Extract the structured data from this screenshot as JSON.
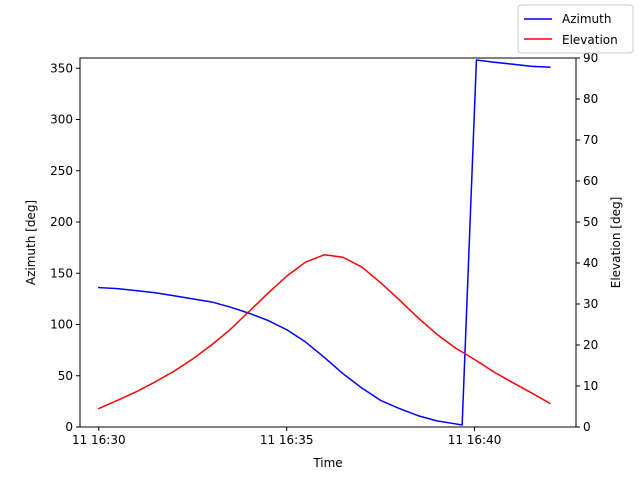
{
  "chart_data": {
    "type": "line",
    "xlabel": "Time",
    "ylabel_left": "Azimuth [deg]",
    "ylabel_right": "Elevation [deg]",
    "x_ticks": [
      "11 16:30",
      "11 16:35",
      "11 16:40"
    ],
    "xlim": [
      "16:29.5",
      "16:42.7"
    ],
    "ylim_left": [
      0,
      360
    ],
    "ylim_right": [
      0,
      90
    ],
    "y_ticks_left": [
      0,
      50,
      100,
      150,
      200,
      250,
      300,
      350
    ],
    "y_ticks_right": [
      0,
      10,
      20,
      30,
      40,
      50,
      60,
      70,
      80,
      90
    ],
    "legend_position": "top-right",
    "x": [
      "16:30",
      "16:30.5",
      "16:31",
      "16:31.5",
      "16:32",
      "16:32.5",
      "16:33",
      "16:33.5",
      "16:34",
      "16:34.5",
      "16:35",
      "16:35.5",
      "16:36",
      "16:36.5",
      "16:37",
      "16:37.5",
      "16:38",
      "16:38.5",
      "16:39",
      "16:39.5",
      "16:39.67",
      "16:40.05",
      "16:40.5",
      "16:41",
      "16:41.5",
      "16:42"
    ],
    "series": [
      {
        "name": "Azimuth",
        "color": "#0000ff",
        "axis": "left",
        "values": [
          136,
          135,
          133,
          131,
          128,
          125,
          122,
          117,
          111,
          104,
          95,
          83,
          68,
          52,
          38,
          26,
          18,
          11,
          6,
          3,
          2,
          358,
          356,
          354,
          352,
          351
        ]
      },
      {
        "name": "Elevation",
        "color": "#ff0000",
        "axis": "right",
        "values": [
          4.5,
          6.5,
          8.6,
          11,
          13.6,
          16.6,
          20,
          23.8,
          28.2,
          32.6,
          36.8,
          40.2,
          42,
          41.4,
          39,
          35.2,
          31,
          26.6,
          22.6,
          19.2,
          18.3,
          16.2,
          13.5,
          10.9,
          8.4,
          5.8
        ]
      }
    ]
  }
}
